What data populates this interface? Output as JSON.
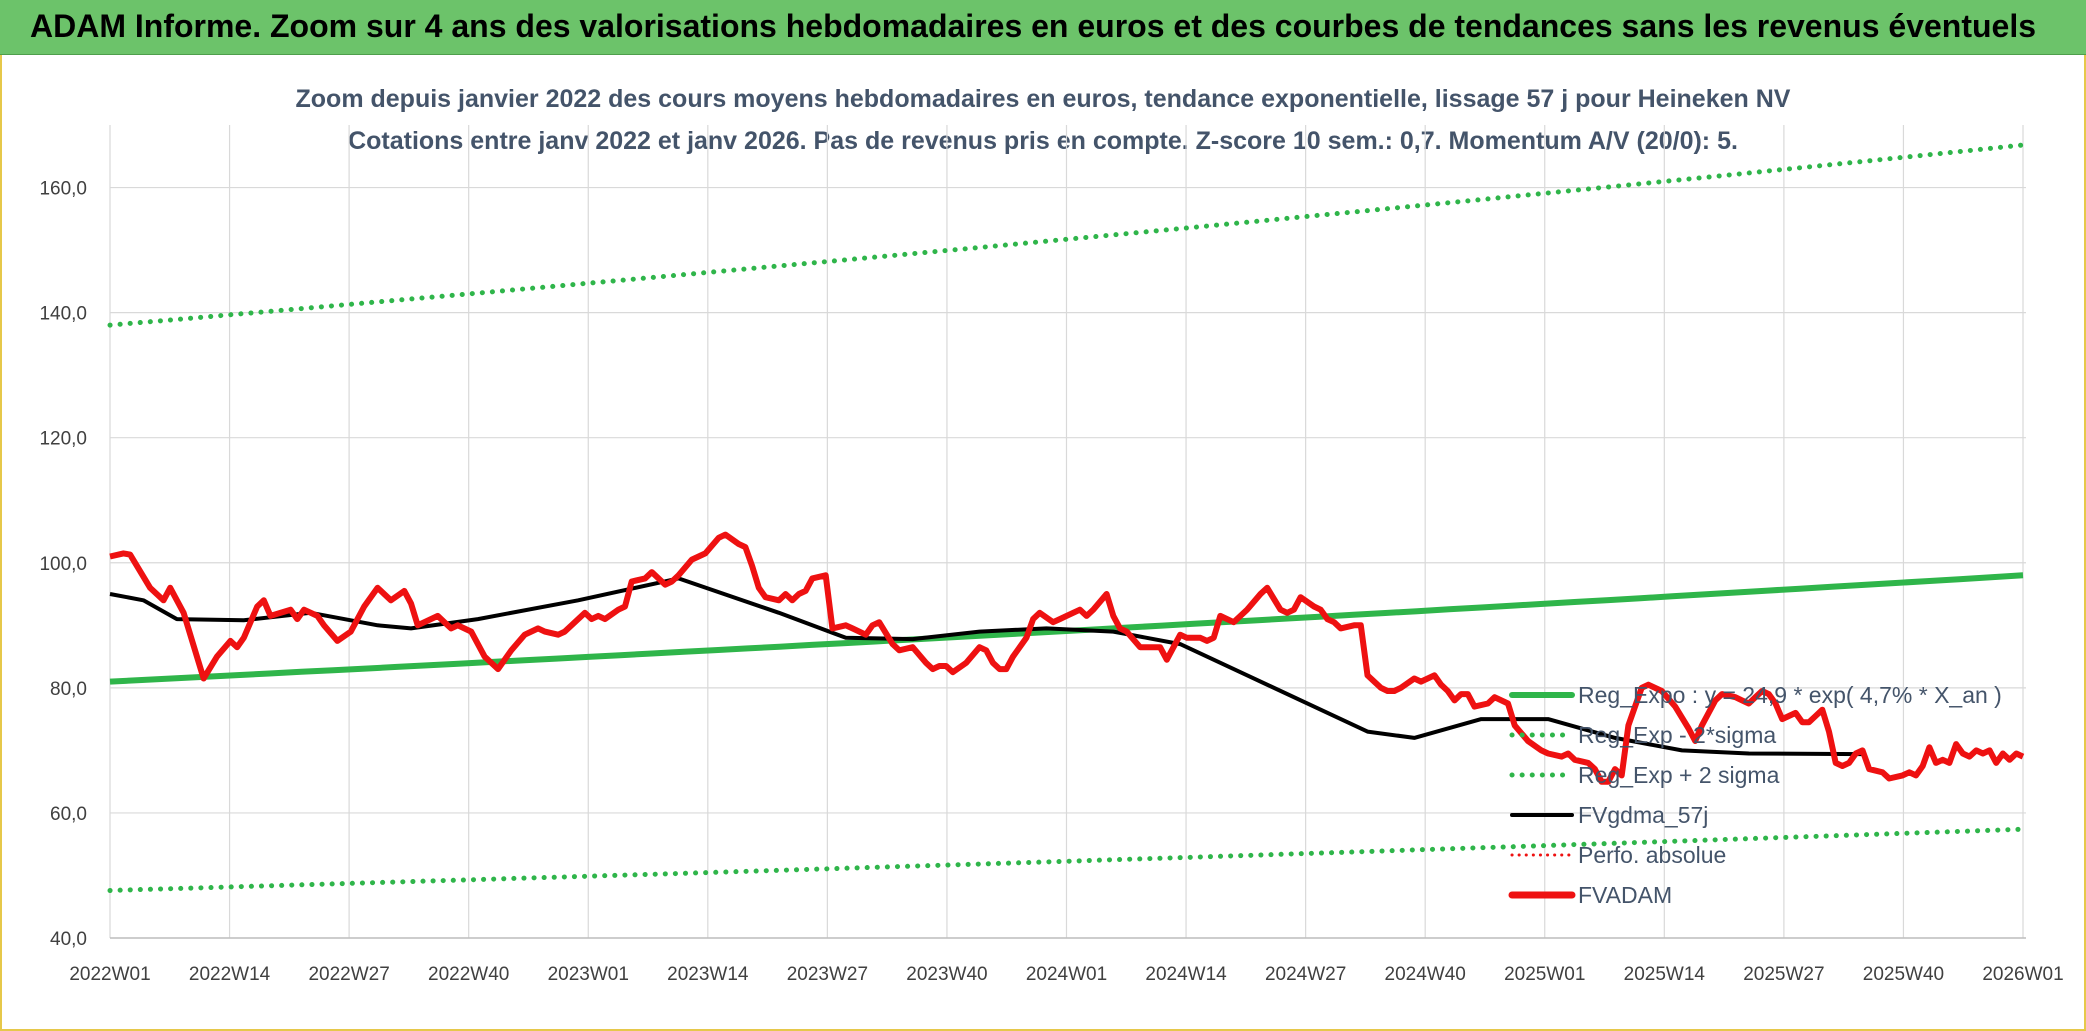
{
  "header": {
    "title": "ADAM Informe. Zoom sur 4 ans des valorisations hebdomadaires en euros et des courbes de tendances sans les revenus éventuels"
  },
  "colors": {
    "trend": "#2fb54a",
    "fvgdma": "#000000",
    "fvadam": "#ee1111",
    "perfo": "#ee1111",
    "grid": "#d9d9d9",
    "banner": "#6cc36a"
  },
  "chart_data": {
    "type": "line",
    "title_line1": "Zoom depuis janvier 2022 des cours moyens hebdomadaires en euros, tendance exponentielle, lissage 57 j pour Heineken NV",
    "title_line2": "Cotations entre janv 2022 et janv 2026. Pas de revenus pris en compte. Z-score 10 sem.: 0,7. Momentum A/V (20/0): 5.",
    "ylim": [
      40,
      170
    ],
    "yticks": [
      "40,0",
      "60,0",
      "80,0",
      "100,0",
      "120,0",
      "140,0",
      "160,0"
    ],
    "ytick_values": [
      40,
      60,
      80,
      100,
      120,
      140,
      160
    ],
    "xticks": [
      "2022W01",
      "2022W14",
      "2022W27",
      "2022W40",
      "2023W01",
      "2023W14",
      "2023W27",
      "2023W40",
      "2024W01",
      "2024W14",
      "2024W27",
      "2024W40",
      "2025W01",
      "2025W14",
      "2025W27",
      "2025W40",
      "2026W01"
    ],
    "n_weeks": 209,
    "legend": [
      {
        "key": "regexpo",
        "label": "Reg_Expo : y = 24,9 * exp( 4,7% *  X_an )",
        "style": "solid-green"
      },
      {
        "key": "regminus",
        "label": "Reg_Exp - 2*sigma",
        "style": "dotted-green"
      },
      {
        "key": "regplus",
        "label": "Reg_Exp + 2 sigma",
        "style": "dotted-green"
      },
      {
        "key": "fvgdma",
        "label": "FVgdma_57j",
        "style": "solid-black"
      },
      {
        "key": "perfo",
        "label": "Perfo. absolue",
        "style": "dotted-red"
      },
      {
        "key": "fvadam",
        "label": "FVADAM",
        "style": "solid-red"
      }
    ],
    "series": [
      {
        "name": "Reg_Expo",
        "start": 81.0,
        "end": 98.0
      },
      {
        "name": "Reg_Exp + 2 sigma",
        "start": 138.0,
        "end": 166.8
      },
      {
        "name": "Reg_Exp - 2*sigma",
        "start": 47.6,
        "end": 57.4
      },
      {
        "name": "FVgdma_57j",
        "points": [
          [
            0,
            95
          ],
          [
            5,
            94
          ],
          [
            10,
            91
          ],
          [
            20,
            90.8
          ],
          [
            30,
            92
          ],
          [
            40,
            90
          ],
          [
            45,
            89.5
          ],
          [
            55,
            91
          ],
          [
            70,
            94
          ],
          [
            85,
            97.5
          ],
          [
            100,
            92
          ],
          [
            110,
            88
          ],
          [
            120,
            87.8
          ],
          [
            130,
            89
          ],
          [
            140,
            89.5
          ],
          [
            150,
            89
          ],
          [
            160,
            87
          ],
          [
            170,
            82
          ],
          [
            180,
            77
          ],
          [
            188,
            73
          ],
          [
            195,
            72
          ],
          [
            205,
            75
          ],
          [
            215,
            75
          ],
          [
            225,
            72
          ],
          [
            235,
            70
          ],
          [
            245,
            69.5
          ],
          [
            262,
            69.4
          ]
        ]
      },
      {
        "name": "FVADAM",
        "points": [
          [
            0,
            101
          ],
          [
            2,
            101.5
          ],
          [
            3,
            101.3
          ],
          [
            6,
            96
          ],
          [
            8,
            94
          ],
          [
            9,
            96
          ],
          [
            11,
            92
          ],
          [
            14,
            81.5
          ],
          [
            16,
            85
          ],
          [
            18,
            87.5
          ],
          [
            19,
            86.5
          ],
          [
            20,
            88
          ],
          [
            22,
            93
          ],
          [
            23,
            94
          ],
          [
            24,
            91.5
          ],
          [
            27,
            92.5
          ],
          [
            28,
            91
          ],
          [
            29,
            92.5
          ],
          [
            31,
            91.5
          ],
          [
            32,
            90
          ],
          [
            34,
            87.5
          ],
          [
            36,
            89
          ],
          [
            38,
            93
          ],
          [
            40,
            96
          ],
          [
            42,
            94
          ],
          [
            44,
            95.5
          ],
          [
            45,
            93.5
          ],
          [
            46,
            90
          ],
          [
            49,
            91.5
          ],
          [
            50,
            90.5
          ],
          [
            51,
            89.5
          ],
          [
            52,
            90
          ],
          [
            54,
            89
          ],
          [
            56,
            85
          ],
          [
            57,
            84
          ],
          [
            58,
            83
          ],
          [
            60,
            86
          ],
          [
            62,
            88.5
          ],
          [
            64,
            89.5
          ],
          [
            65,
            89
          ],
          [
            67,
            88.5
          ],
          [
            68,
            89
          ],
          [
            70,
            91
          ],
          [
            71,
            92
          ],
          [
            72,
            91
          ],
          [
            73,
            91.5
          ],
          [
            74,
            91
          ],
          [
            76,
            92.5
          ],
          [
            77,
            93
          ],
          [
            78,
            97
          ],
          [
            80,
            97.5
          ],
          [
            81,
            98.5
          ],
          [
            83,
            96.5
          ],
          [
            84,
            97
          ],
          [
            85,
            98
          ],
          [
            87,
            100.5
          ],
          [
            89,
            101.5
          ],
          [
            91,
            104
          ],
          [
            92,
            104.5
          ],
          [
            94,
            103
          ],
          [
            95,
            102.5
          ],
          [
            96,
            99.5
          ],
          [
            97,
            96
          ],
          [
            98,
            94.5
          ],
          [
            100,
            94
          ],
          [
            101,
            95
          ],
          [
            102,
            94
          ],
          [
            103,
            95
          ],
          [
            104,
            95.5
          ],
          [
            105,
            97.5
          ],
          [
            107,
            98
          ],
          [
            108,
            89.5
          ],
          [
            110,
            90
          ],
          [
            111,
            89.5
          ],
          [
            113,
            88.5
          ],
          [
            114,
            90
          ],
          [
            115,
            90.5
          ],
          [
            117,
            87
          ],
          [
            118,
            86
          ],
          [
            120,
            86.5
          ],
          [
            122,
            84
          ],
          [
            123,
            83
          ],
          [
            124,
            83.5
          ],
          [
            125,
            83.5
          ],
          [
            126,
            82.5
          ],
          [
            128,
            84
          ],
          [
            130,
            86.5
          ],
          [
            131,
            86
          ],
          [
            132,
            84
          ],
          [
            133,
            83
          ],
          [
            134,
            83
          ],
          [
            135,
            85
          ],
          [
            137,
            88
          ],
          [
            138,
            91
          ],
          [
            139,
            92
          ],
          [
            141,
            90.5
          ],
          [
            142,
            91
          ],
          [
            143,
            91.5
          ],
          [
            145,
            92.5
          ],
          [
            146,
            91.5
          ],
          [
            147,
            92.5
          ],
          [
            149,
            95
          ],
          [
            150,
            91.5
          ],
          [
            151,
            89.5
          ],
          [
            152,
            89
          ],
          [
            154,
            86.5
          ],
          [
            155,
            86.5
          ],
          [
            157,
            86.5
          ],
          [
            158,
            84.5
          ],
          [
            160,
            88.5
          ],
          [
            161,
            88
          ],
          [
            163,
            88
          ],
          [
            164,
            87.5
          ],
          [
            165,
            88
          ],
          [
            166,
            91.5
          ],
          [
            168,
            90.5
          ],
          [
            170,
            92.5
          ],
          [
            172,
            95
          ],
          [
            173,
            96
          ],
          [
            175,
            92.5
          ],
          [
            176,
            92
          ],
          [
            177,
            92.5
          ],
          [
            178,
            94.5
          ],
          [
            180,
            93
          ],
          [
            181,
            92.5
          ],
          [
            182,
            91
          ],
          [
            183,
            90.5
          ],
          [
            184,
            89.5
          ],
          [
            186,
            90
          ],
          [
            187,
            90
          ],
          [
            188,
            82
          ],
          [
            190,
            80
          ],
          [
            191,
            79.5
          ],
          [
            192,
            79.5
          ],
          [
            193,
            80
          ],
          [
            195,
            81.5
          ],
          [
            196,
            81
          ],
          [
            197,
            81.5
          ],
          [
            198,
            82
          ],
          [
            199,
            80.5
          ],
          [
            200,
            79.5
          ],
          [
            201,
            78
          ],
          [
            202,
            79
          ],
          [
            203,
            79
          ],
          [
            204,
            77
          ],
          [
            206,
            77.5
          ],
          [
            207,
            78.5
          ],
          [
            209,
            77.5
          ],
          [
            210,
            74
          ],
          [
            212,
            71.5
          ],
          [
            214,
            70
          ],
          [
            215,
            69.5
          ],
          [
            217,
            69
          ],
          [
            218,
            69.5
          ],
          [
            219,
            68.5
          ],
          [
            221,
            68
          ],
          [
            222,
            67
          ],
          [
            223,
            65
          ],
          [
            224,
            65
          ],
          [
            225,
            67
          ],
          [
            226,
            66
          ],
          [
            227,
            74
          ],
          [
            228,
            77
          ],
          [
            229,
            80
          ],
          [
            230,
            80.5
          ],
          [
            232,
            79.5
          ],
          [
            234,
            77
          ],
          [
            236,
            73.5
          ],
          [
            237,
            71.5
          ],
          [
            238,
            74
          ],
          [
            239,
            76
          ],
          [
            240,
            78
          ],
          [
            241,
            79
          ],
          [
            243,
            78.5
          ],
          [
            244,
            78
          ],
          [
            245,
            77.5
          ],
          [
            246,
            78.5
          ],
          [
            247,
            79.5
          ],
          [
            248,
            79
          ],
          [
            249,
            77.5
          ],
          [
            250,
            75
          ],
          [
            252,
            76
          ],
          [
            253,
            74.5
          ],
          [
            254,
            74.5
          ],
          [
            255,
            75.5
          ],
          [
            256,
            76.5
          ],
          [
            257,
            73
          ],
          [
            258,
            68
          ],
          [
            259,
            67.5
          ],
          [
            260,
            68
          ],
          [
            261,
            69.5
          ],
          [
            262,
            70
          ],
          [
            263,
            67
          ],
          [
            265,
            66.5
          ],
          [
            266,
            65.5
          ],
          [
            268,
            66
          ],
          [
            269,
            66.5
          ],
          [
            270,
            66
          ],
          [
            271,
            67.5
          ],
          [
            272,
            70.5
          ],
          [
            273,
            68
          ],
          [
            274,
            68.5
          ],
          [
            275,
            68
          ],
          [
            276,
            71
          ],
          [
            277,
            69.5
          ],
          [
            278,
            69
          ],
          [
            279,
            70
          ],
          [
            280,
            69.5
          ],
          [
            281,
            70
          ],
          [
            282,
            68
          ],
          [
            283,
            69.5
          ],
          [
            284,
            68.5
          ],
          [
            285,
            69.5
          ],
          [
            286,
            69
          ]
        ]
      }
    ]
  }
}
